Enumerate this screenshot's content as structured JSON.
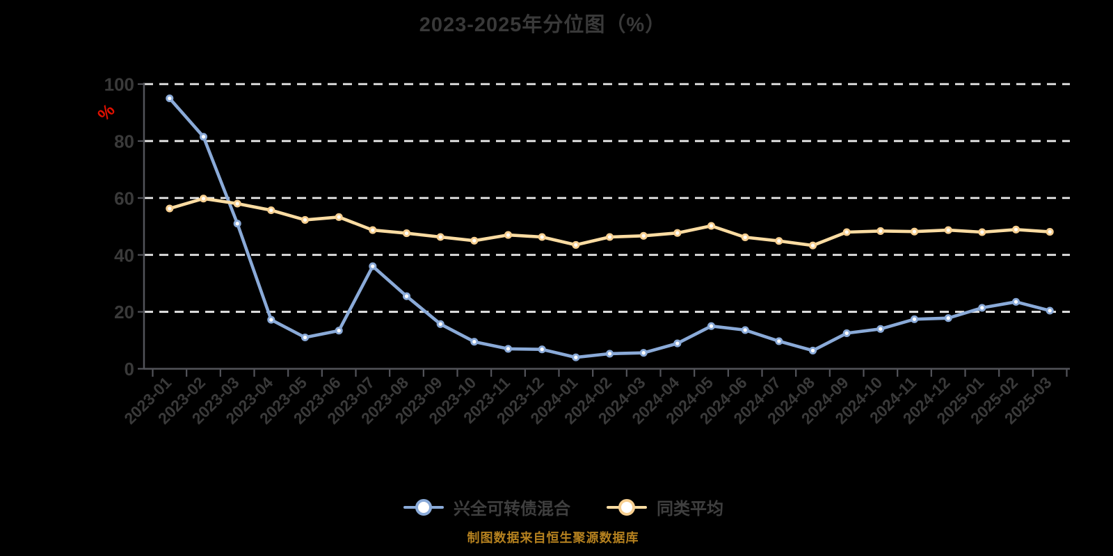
{
  "chart_data": {
    "type": "line",
    "title": "2023-2025年分位图（%）",
    "source_note": "制图数据来自恒生聚源数据库",
    "ylabel": "%",
    "ylim": [
      0,
      100
    ],
    "yticks": [
      0,
      20,
      40,
      60,
      80,
      100
    ],
    "grid": "horizontal-dashed",
    "legend_position": "bottom-center",
    "categories": [
      "2023-01",
      "2023-02",
      "2023-03",
      "2023-04",
      "2023-05",
      "2023-06",
      "2023-07",
      "2023-08",
      "2023-09",
      "2023-10",
      "2023-11",
      "2023-12",
      "2024-01",
      "2024-02",
      "2024-03",
      "2024-04",
      "2024-05",
      "2024-06",
      "2024-07",
      "2024-08",
      "2024-09",
      "2024-10",
      "2024-11",
      "2024-12",
      "2025-01",
      "2025-02",
      "2025-03"
    ],
    "series": [
      {
        "name": "兴全可转债混合",
        "color": "#8aaad8",
        "marker_color": "#8aaad8",
        "marker_fill": "#ffffff",
        "values": [
          95,
          81.5,
          51,
          17.2,
          11,
          13.4,
          36,
          25.5,
          15.7,
          9.5,
          7,
          6.8,
          4,
          5.3,
          5.6,
          8.9,
          15,
          13.6,
          9.7,
          6.4,
          12.5,
          14,
          17.4,
          17.8,
          21.4,
          23.5,
          20.4
        ]
      },
      {
        "name": "同类平均",
        "color": "#fbdca2",
        "marker_color": "#f7cf90",
        "marker_fill": "#fffdf6",
        "values": [
          56.3,
          59.8,
          58,
          55.7,
          52.3,
          53.3,
          48.7,
          47.6,
          46.3,
          45,
          47,
          46.3,
          43.5,
          46.3,
          46.7,
          47.7,
          50.2,
          46.2,
          44.9,
          43.3,
          48,
          48.4,
          48.2,
          48.7,
          48,
          48.9,
          48.1
        ]
      }
    ],
    "colors": {
      "background": "#000000",
      "title_text": "#393939",
      "axis_line": "#53545a",
      "axis_label": "#3a3a3a",
      "gridline": "#ececec",
      "percent_label": "#e01000",
      "legend_text": "#3f3f3f",
      "source_text": "#b5811f"
    }
  }
}
